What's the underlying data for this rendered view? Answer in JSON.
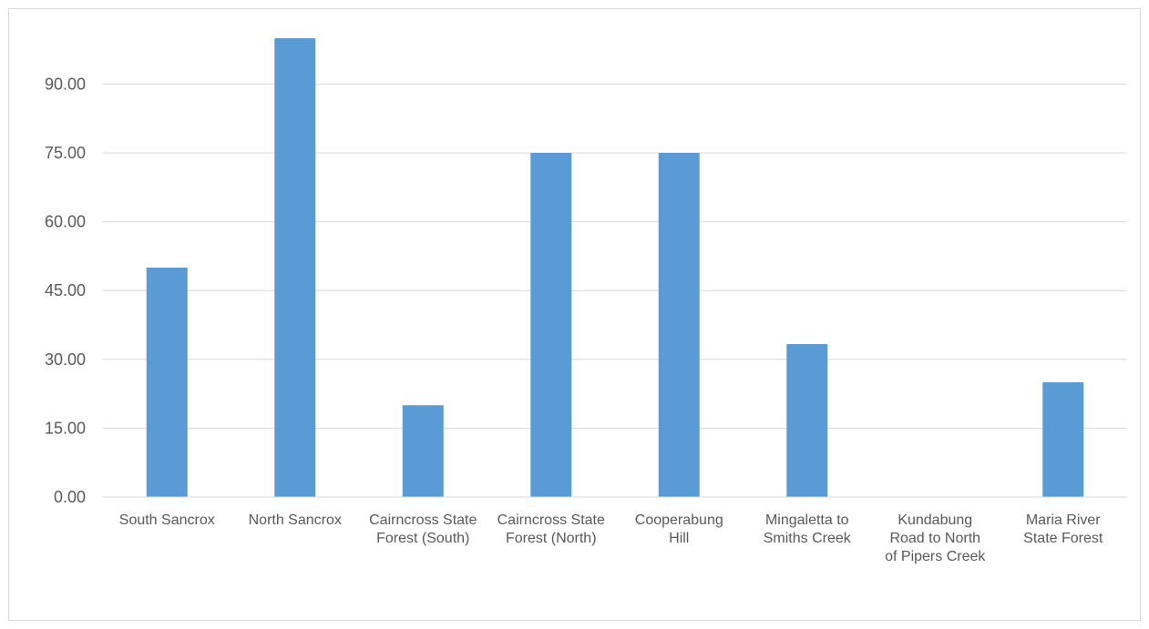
{
  "chart_data": {
    "type": "bar",
    "title": "",
    "xlabel": "",
    "ylabel": "",
    "categories": [
      [
        "South Sancrox"
      ],
      [
        "North Sancrox"
      ],
      [
        "Cairncross State",
        "Forest (South)"
      ],
      [
        "Cairncross State",
        "Forest (North)"
      ],
      [
        "Cooperabung",
        "Hill"
      ],
      [
        "Mingaletta to",
        "Smiths Creek"
      ],
      [
        "Kundabung",
        "Road to North",
        "of Pipers Creek"
      ],
      [
        "Maria River",
        "State Forest"
      ]
    ],
    "values": [
      50,
      100,
      20,
      75,
      75,
      33.33,
      0,
      25
    ],
    "ylim": [
      0,
      100
    ],
    "yticks": [
      0,
      15,
      30,
      45,
      60,
      75,
      90
    ],
    "ytick_labels": [
      "0.00",
      "15.00",
      "30.00",
      "45.00",
      "60.00",
      "75.00",
      "90.00"
    ],
    "grid": true,
    "legend": "none",
    "colors": {
      "bar": "#5b9bd5",
      "grid": "#d9d9d9",
      "axis": "#d9d9d9",
      "text": "#595959"
    }
  }
}
